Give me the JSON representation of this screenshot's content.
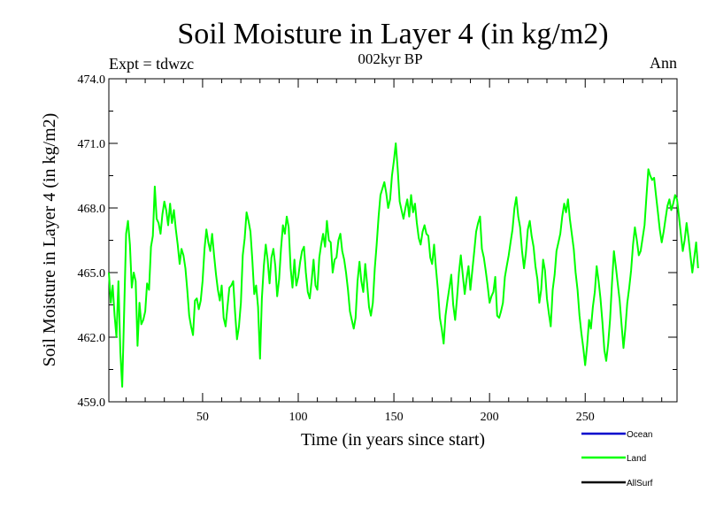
{
  "chart_data": {
    "type": "line",
    "title": "Soil Moisture in Layer 4 (in kg/m2)",
    "subtitle": "002kyr BP",
    "expt_label": "Expt = tdwzc",
    "period_label": "Ann",
    "xlabel": "Time (in years since start)",
    "ylabel": "Soil Moisture in Layer 4 (in kg/m2)",
    "xlim": [
      1,
      298
    ],
    "ylim": [
      459.0,
      474.0
    ],
    "xticks": [
      50,
      100,
      150,
      200,
      250
    ],
    "xtick_labels": [
      "50",
      "100",
      "150",
      "200",
      "250"
    ],
    "yticks": [
      459,
      462,
      465,
      468,
      471,
      474
    ],
    "ytick_labels": [
      "459.0",
      "462.0",
      "465.0",
      "468.0",
      "471.0",
      "474.0"
    ],
    "legend": [
      {
        "name": "Ocean",
        "color": "#0000cc"
      },
      {
        "name": "Land",
        "color": "#00ff00"
      },
      {
        "name": "AllSurf",
        "color": "#000000"
      }
    ],
    "series": [
      {
        "name": "Land",
        "color": "#00ff00",
        "x_start": 1,
        "x_step": 1,
        "values": [
          465.0,
          463.6,
          464.4,
          463.0,
          462.0,
          464.6,
          461.3,
          459.7,
          463.2,
          466.8,
          467.4,
          466.3,
          464.3,
          465.0,
          464.6,
          461.6,
          463.6,
          462.6,
          462.8,
          463.2,
          464.5,
          464.2,
          466.2,
          466.7,
          469.0,
          467.5,
          467.3,
          466.8,
          467.7,
          468.3,
          467.9,
          467.2,
          468.2,
          467.3,
          467.9,
          467.0,
          466.3,
          465.4,
          466.1,
          465.8,
          465.2,
          464.2,
          463.0,
          462.5,
          462.1,
          463.7,
          463.8,
          463.3,
          463.7,
          464.6,
          466.1,
          467.0,
          466.4,
          466.0,
          466.8,
          465.8,
          464.9,
          464.2,
          463.7,
          464.4,
          462.9,
          462.5,
          463.4,
          464.3,
          464.4,
          464.6,
          463.1,
          461.9,
          462.5,
          463.6,
          465.8,
          466.6,
          467.8,
          467.4,
          466.9,
          465.6,
          464.0,
          464.4,
          463.4,
          461.0,
          463.8,
          465.3,
          466.3,
          465.6,
          464.5,
          465.7,
          466.1,
          465.3,
          463.9,
          464.7,
          466.1,
          467.2,
          466.8,
          467.6,
          467.1,
          465.2,
          464.3,
          465.6,
          464.4,
          464.8,
          465.5,
          466.0,
          466.2,
          465.0,
          464.1,
          463.8,
          464.6,
          465.6,
          464.4,
          464.2,
          465.7,
          466.3,
          466.8,
          466.2,
          467.4,
          466.5,
          466.4,
          465.0,
          465.6,
          465.7,
          466.5,
          466.8,
          466.0,
          465.6,
          465.0,
          464.2,
          463.2,
          462.8,
          462.4,
          462.9,
          464.6,
          465.5,
          464.6,
          464.1,
          465.4,
          464.5,
          463.4,
          463.0,
          463.6,
          465.2,
          466.3,
          467.6,
          468.6,
          468.9,
          469.2,
          468.7,
          468.0,
          468.4,
          469.5,
          470.2,
          471.0,
          469.8,
          468.3,
          467.9,
          467.5,
          468.0,
          468.4,
          467.6,
          468.6,
          467.8,
          468.2,
          467.3,
          466.6,
          466.3,
          466.9,
          467.2,
          466.8,
          466.7,
          465.7,
          465.4,
          466.3,
          465.2,
          464.2,
          462.9,
          462.4,
          461.7,
          463.0,
          463.7,
          464.3,
          464.9,
          463.5,
          462.8,
          463.8,
          465.0,
          465.8,
          464.9,
          464.0,
          464.7,
          465.3,
          464.2,
          465.1,
          466.0,
          466.9,
          467.3,
          467.6,
          466.1,
          465.7,
          465.1,
          464.4,
          463.6,
          463.9,
          464.1,
          464.8,
          463.0,
          462.9,
          463.2,
          463.6,
          464.8,
          465.3,
          465.8,
          466.4,
          467.0,
          468.0,
          468.5,
          467.6,
          467.1,
          466.0,
          465.2,
          465.9,
          467.0,
          467.4,
          466.7,
          466.2,
          465.3,
          464.7,
          463.6,
          464.2,
          465.6,
          465.1,
          463.8,
          463.1,
          462.5,
          464.2,
          464.9,
          466.0,
          466.4,
          466.8,
          467.6,
          468.2,
          467.8,
          468.4,
          467.5,
          466.8,
          466.1,
          465.0,
          464.2,
          463.0,
          462.2,
          461.5,
          460.7,
          461.6,
          462.8,
          462.4,
          463.4,
          464.1,
          465.3,
          464.6,
          463.8,
          462.7,
          461.4,
          460.9,
          461.7,
          462.8,
          464.5,
          466.0,
          465.3,
          464.5,
          463.7,
          462.6,
          461.5,
          462.4,
          463.6,
          464.3,
          465.1,
          466.3,
          467.1,
          466.5,
          465.8,
          466.0,
          466.6,
          467.2,
          468.5,
          469.8,
          469.5,
          469.3,
          469.4,
          468.6,
          467.8,
          467.0,
          466.4,
          466.9,
          467.5,
          468.1,
          468.4,
          467.9,
          468.2,
          468.6,
          468.4,
          467.6,
          466.8,
          466.0,
          466.5,
          467.3,
          466.6,
          465.8,
          465.0,
          465.7,
          466.4,
          465.2
        ]
      }
    ]
  }
}
